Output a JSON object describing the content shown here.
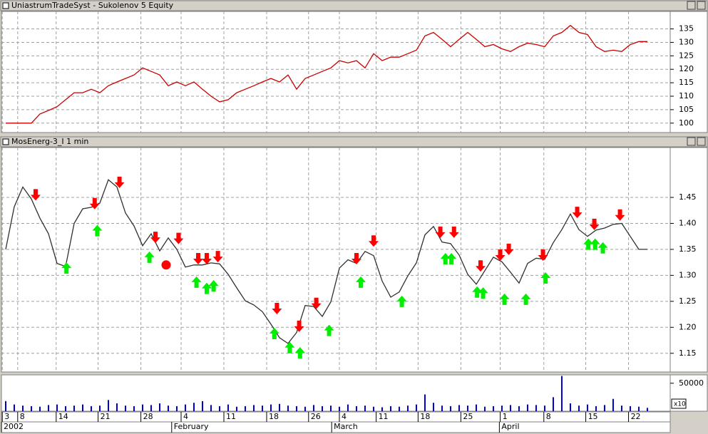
{
  "chart_data": [
    {
      "type": "line",
      "title": "UniastrumTradeSyst - Sukolenov 5 Equity",
      "x": [
        0,
        1,
        2,
        3,
        4,
        5,
        6,
        7,
        8,
        9,
        10,
        11,
        12,
        13,
        14,
        15,
        16,
        17,
        18,
        19,
        20,
        21,
        22,
        23,
        24,
        25,
        26,
        27,
        28,
        29,
        30,
        31,
        32,
        33,
        34,
        35,
        36,
        37,
        38,
        39,
        40,
        41,
        42,
        43,
        44,
        45,
        46,
        47,
        48,
        49,
        50,
        51,
        52,
        53,
        54,
        55,
        56,
        57,
        58,
        59,
        60,
        61,
        62,
        63,
        64,
        65,
        66,
        67,
        68,
        69,
        70,
        71,
        72,
        73,
        74,
        75
      ],
      "series": [
        {
          "color": "#cc0000",
          "values": [
            100,
            100,
            100,
            100,
            103.4,
            104.7,
            106.1,
            108.7,
            111.3,
            111.3,
            112.6,
            111.3,
            113.9,
            115.3,
            116.6,
            117.9,
            120.5,
            119.2,
            117.9,
            113.9,
            115.3,
            113.9,
            115.3,
            112.6,
            110,
            107.9,
            108.7,
            111.3,
            112.6,
            113.9,
            115.3,
            116.6,
            115.3,
            117.9,
            112.6,
            116.6,
            117.9,
            119.2,
            120.5,
            123.2,
            122.4,
            123.2,
            120.5,
            125.8,
            123.2,
            124.5,
            124.5,
            125.8,
            127.1,
            132.4,
            133.7,
            131.1,
            128.4,
            131.1,
            133.7,
            131.1,
            128.4,
            129.2,
            127.6,
            126.6,
            128.4,
            129.7,
            129.2,
            128.4,
            132.4,
            133.7,
            136.3,
            133.7,
            132.9,
            128.4,
            126.6,
            127.1,
            126.6,
            129.2,
            130.3,
            130.3
          ]
        }
      ],
      "xlim": [
        -0.5,
        77.67
      ],
      "ylim": [
        96.5,
        141.5
      ],
      "yticks": [
        100,
        105,
        110,
        115,
        120,
        125,
        130,
        135
      ],
      "grid": true
    },
    {
      "type": "line",
      "title": "MosEnerg-3_I 1 min",
      "x": [
        0,
        1,
        2,
        3,
        4,
        5,
        6,
        7,
        8,
        9,
        10,
        11,
        12,
        13,
        14,
        15,
        16,
        17,
        18,
        19,
        20,
        21,
        22,
        23,
        24,
        25,
        26,
        27,
        28,
        29,
        30,
        31,
        32,
        33,
        34,
        35,
        36,
        37,
        38,
        39,
        40,
        41,
        42,
        43,
        44,
        45,
        46,
        47,
        48,
        49,
        50,
        51,
        52,
        53,
        54,
        55,
        56,
        57,
        58,
        59,
        60,
        61,
        62,
        63,
        64,
        65,
        66,
        67,
        68,
        69,
        70,
        71,
        72,
        73,
        74,
        75
      ],
      "series": [
        {
          "color": "#303030",
          "values": [
            1.35,
            1.432,
            1.47,
            1.447,
            1.41,
            1.38,
            1.323,
            1.317,
            1.4,
            1.428,
            1.431,
            1.439,
            1.484,
            1.47,
            1.42,
            1.395,
            1.357,
            1.38,
            1.347,
            1.372,
            1.35,
            1.316,
            1.32,
            1.32,
            1.324,
            1.322,
            1.302,
            1.276,
            1.251,
            1.243,
            1.23,
            1.206,
            1.18,
            1.169,
            1.19,
            1.242,
            1.24,
            1.221,
            1.249,
            1.314,
            1.33,
            1.323,
            1.346,
            1.338,
            1.289,
            1.258,
            1.268,
            1.299,
            1.324,
            1.378,
            1.394,
            1.364,
            1.361,
            1.339,
            1.302,
            1.283,
            1.309,
            1.335,
            1.326,
            1.306,
            1.285,
            1.323,
            1.333,
            1.331,
            1.363,
            1.388,
            1.418,
            1.388,
            1.375,
            1.387,
            1.391,
            1.398,
            1.4,
            1.375,
            1.35,
            1.35
          ]
        }
      ],
      "signals": {
        "sell": {
          "color": "#ff0000",
          "x": [
            3.5,
            10.4,
            13.3,
            17.5,
            20.2,
            22.5,
            23.5,
            24.8,
            31.7,
            34.3,
            36.3,
            41,
            43,
            50.8,
            52.4,
            55.5,
            57.8,
            58.8,
            62.8,
            66.8,
            68.8,
            71.8
          ],
          "values": [
            1.455,
            1.438,
            1.479,
            1.373,
            1.371,
            1.332,
            1.332,
            1.336,
            1.236,
            1.202,
            1.246,
            1.332,
            1.366,
            1.383,
            1.383,
            1.318,
            1.339,
            1.35,
            1.339,
            1.421,
            1.398,
            1.416
          ]
        },
        "buy": {
          "color": "#00ee00",
          "x": [
            7.1,
            10.7,
            16.8,
            22.3,
            23.5,
            24.3,
            31.4,
            33.2,
            34.4,
            37.8,
            41.5,
            46.3,
            51.4,
            52.1,
            55.1,
            55.8,
            58.3,
            60.8,
            63.1,
            68.1,
            68.9,
            69.8
          ],
          "values": [
            1.314,
            1.386,
            1.335,
            1.287,
            1.275,
            1.28,
            1.188,
            1.161,
            1.151,
            1.194,
            1.287,
            1.25,
            1.332,
            1.332,
            1.268,
            1.266,
            1.254,
            1.254,
            1.295,
            1.36,
            1.36,
            1.353
          ]
        },
        "exit": {
          "color": "#ff0000",
          "x": [
            18.75
          ],
          "values": [
            1.32
          ]
        }
      },
      "xlim": [
        -0.5,
        77.67
      ],
      "ylim": [
        1.114,
        1.546
      ],
      "yticks": [
        1.15,
        {
          "value": 1.2,
          "label": "1.20"
        },
        1.25,
        {
          "value": 1.3,
          "label": "1.30"
        },
        1.35,
        {
          "value": 1.4,
          "label": "1.40"
        },
        1.45
      ],
      "grid": true
    },
    {
      "type": "bar",
      "x": [
        0,
        1,
        2,
        3,
        4,
        5,
        6,
        7,
        8,
        9,
        10,
        11,
        12,
        13,
        14,
        15,
        16,
        17,
        18,
        19,
        20,
        21,
        22,
        23,
        24,
        25,
        26,
        27,
        28,
        29,
        30,
        31,
        32,
        33,
        34,
        35,
        36,
        37,
        38,
        39,
        40,
        41,
        42,
        43,
        44,
        45,
        46,
        47,
        48,
        49,
        50,
        51,
        52,
        53,
        54,
        55,
        56,
        57,
        58,
        59,
        60,
        61,
        62,
        63,
        64,
        65,
        66,
        67,
        68,
        69,
        70,
        71,
        72,
        73,
        74,
        75
      ],
      "values": [
        18000,
        12000,
        10000,
        9000,
        8000,
        11000,
        12000,
        9000,
        10000,
        12000,
        9000,
        10000,
        20000,
        14000,
        10000,
        9000,
        12000,
        11000,
        14000,
        10000,
        9000,
        12000,
        15000,
        18000,
        11000,
        9000,
        12000,
        8000,
        9000,
        11000,
        10000,
        12000,
        13000,
        10000,
        9000,
        8000,
        11000,
        9000,
        10000,
        8000,
        12000,
        9000,
        10000,
        8000,
        7000,
        9000,
        8000,
        10000,
        12000,
        30000,
        15000,
        10000,
        9000,
        11000,
        10000,
        12000,
        8000,
        9000,
        10000,
        11000,
        9000,
        12000,
        11000,
        10000,
        25000,
        63000,
        14000,
        10000,
        12000,
        9000,
        11000,
        22000,
        10000,
        9000,
        8000,
        6000
      ],
      "color": "#0000cc",
      "xlim": [
        -0.5,
        77.67
      ],
      "ylim": [
        0,
        65000
      ],
      "yticks": [
        50000
      ],
      "annotation": "x10",
      "xticks": [
        {
          "value": -0.4,
          "label": "3"
        },
        {
          "value": 1.4,
          "label": "8"
        },
        {
          "value": 5.9,
          "label": "14"
        },
        {
          "value": 10.8,
          "label": "21"
        },
        {
          "value": 15.8,
          "label": "28"
        },
        {
          "value": 20.5,
          "label": "4"
        },
        {
          "value": 25.5,
          "label": "11"
        },
        {
          "value": 30.5,
          "label": "18"
        },
        {
          "value": 35.4,
          "label": "26"
        },
        {
          "value": 39,
          "label": "4"
        },
        {
          "value": 43.3,
          "label": "11"
        },
        {
          "value": 48.2,
          "label": "18"
        },
        {
          "value": 53.2,
          "label": "25"
        },
        {
          "value": 57.8,
          "label": "1"
        },
        {
          "value": 62.9,
          "label": "8"
        },
        {
          "value": 67.8,
          "label": "15"
        },
        {
          "value": 72.8,
          "label": "22"
        }
      ],
      "month_ticks": [
        {
          "value": -0.5,
          "label": "2002"
        },
        {
          "value": 19.4,
          "label": "February"
        },
        {
          "value": 38.1,
          "label": "March"
        },
        {
          "value": 57.7,
          "label": "April"
        }
      ]
    }
  ]
}
